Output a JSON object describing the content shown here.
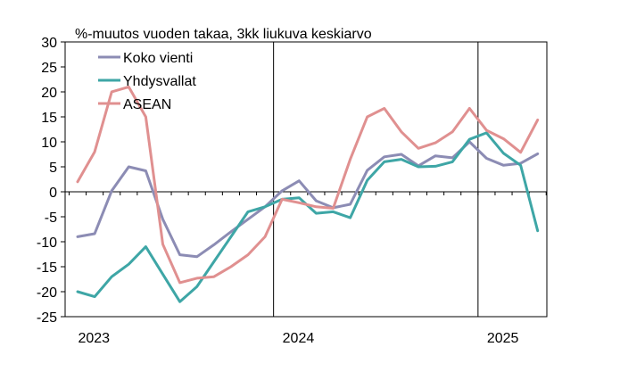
{
  "chart_data": {
    "type": "line",
    "title": "%-muutos vuoden takaa, 3kk liukuva keskiarvo",
    "xlabel": "",
    "ylabel": "",
    "ylim": [
      -25,
      30
    ],
    "yticks": [
      30,
      25,
      20,
      15,
      10,
      5,
      0,
      -5,
      -10,
      -15,
      -20,
      -25
    ],
    "year_labels": [
      "2023",
      "2024",
      "2025"
    ],
    "x": [
      "2023-01",
      "2023-02",
      "2023-03",
      "2023-04",
      "2023-05",
      "2023-06",
      "2023-07",
      "2023-08",
      "2023-09",
      "2023-10",
      "2023-11",
      "2023-12",
      "2024-01",
      "2024-02",
      "2024-03",
      "2024-04",
      "2024-05",
      "2024-06",
      "2024-07",
      "2024-08",
      "2024-09",
      "2024-10",
      "2024-11",
      "2024-12",
      "2025-01",
      "2025-02",
      "2025-03",
      "2025-04"
    ],
    "grid": false,
    "legend_position": "top-left",
    "series": [
      {
        "name": "Koko vienti",
        "color": "#8c8cb4",
        "values": [
          -9.0,
          -8.4,
          0.2,
          5.0,
          4.2,
          -5.5,
          -12.6,
          -13.0,
          -10.6,
          -8.0,
          -5.5,
          -3.0,
          0.2,
          2.2,
          -1.8,
          -3.2,
          -2.5,
          4.3,
          7.0,
          7.5,
          5.2,
          7.2,
          6.8,
          10.0,
          6.7,
          5.3,
          5.7,
          7.6
        ]
      },
      {
        "name": "Yhdysvallat",
        "color": "#3ea6a6",
        "values": [
          -20.0,
          -21.0,
          -17.0,
          -14.5,
          -11.0,
          -16.5,
          -22.0,
          -19.0,
          -14.0,
          -9.0,
          -4.0,
          -3.0,
          -1.5,
          -1.2,
          -4.3,
          -4.0,
          -5.2,
          2.3,
          6.0,
          6.5,
          5.0,
          5.1,
          6.0,
          10.5,
          11.8,
          7.7,
          5.3,
          -7.8
        ]
      },
      {
        "name": "ASEAN",
        "color": "#e09090",
        "values": [
          2.0,
          8.0,
          20.0,
          21.0,
          15.0,
          -10.5,
          -18.2,
          -17.3,
          -17.0,
          -15.0,
          -12.6,
          -9.0,
          -1.5,
          -2.2,
          -3.0,
          -3.3,
          6.5,
          15.0,
          16.7,
          12.0,
          8.7,
          9.8,
          12.0,
          16.7,
          12.3,
          10.6,
          7.9,
          14.4
        ]
      }
    ]
  }
}
